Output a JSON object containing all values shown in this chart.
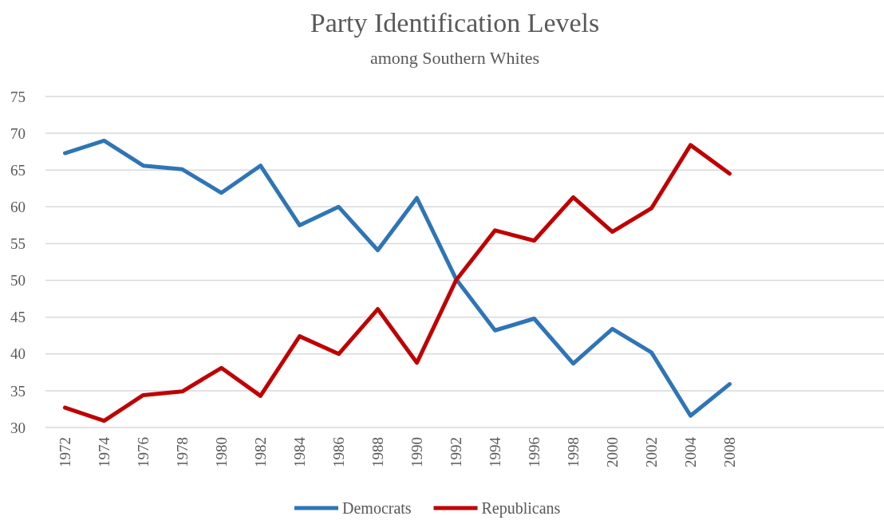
{
  "chart_data": {
    "type": "line",
    "title": "Party Identification Levels",
    "subtitle": "among Southern Whites",
    "categories": [
      "1972",
      "1974",
      "1976",
      "1978",
      "1980",
      "1982",
      "1984",
      "1986",
      "1988",
      "1990",
      "1992",
      "1994",
      "1996",
      "1998",
      "2000",
      "2002",
      "2004",
      "2008",
      null,
      null,
      null
    ],
    "series": [
      {
        "name": "Democrats",
        "color": "#2e75b6",
        "values": [
          67.3,
          69.0,
          65.6,
          65.1,
          61.9,
          65.6,
          57.5,
          60.0,
          54.1,
          61.2,
          50.2,
          43.2,
          44.8,
          38.7,
          43.4,
          40.2,
          31.6,
          35.9,
          null,
          null,
          null
        ]
      },
      {
        "name": "Republicans",
        "color": "#c00000",
        "values": [
          32.7,
          30.9,
          34.4,
          34.9,
          38.1,
          34.3,
          42.4,
          40.0,
          46.1,
          38.8,
          50.0,
          56.8,
          55.4,
          61.3,
          56.6,
          59.8,
          68.4,
          64.5,
          null,
          null,
          null
        ]
      }
    ],
    "ylim": [
      30,
      75
    ],
    "yticks": [
      30,
      35,
      40,
      45,
      50,
      55,
      60,
      65,
      70,
      75
    ],
    "grid": "y",
    "legend": "bottom",
    "marker": "none",
    "line_style": "solid"
  }
}
